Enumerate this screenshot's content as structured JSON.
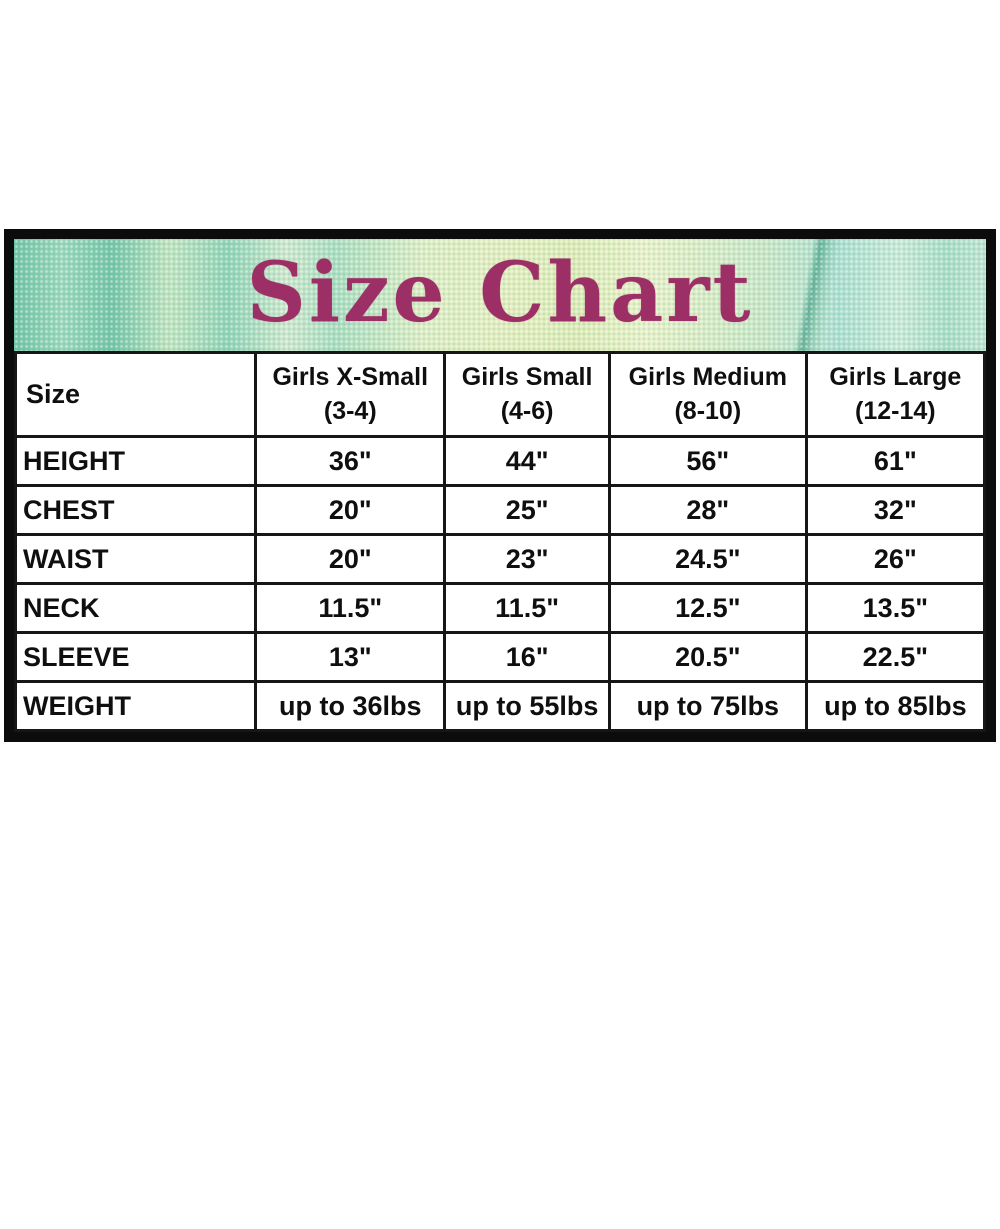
{
  "title": "Size Chart",
  "colors": {
    "title_text": "#9c2f66",
    "banner_teal": "#8fd2b5",
    "banner_yellow_green": "#e2edbe",
    "border_black": "#0c0c0c",
    "table_text": "#0f0f0f",
    "background": "#ffffff"
  },
  "table": {
    "corner_label": "Size",
    "columns": [
      {
        "name": "Girls X-Small",
        "range": "(3-4)"
      },
      {
        "name": "Girls Small",
        "range": "(4-6)"
      },
      {
        "name": "Girls Medium",
        "range": "(8-10)"
      },
      {
        "name": "Girls Large",
        "range": "(12-14)"
      }
    ],
    "rows": [
      {
        "label": "HEIGHT",
        "values": [
          "36\"",
          "44\"",
          "56\"",
          "61\""
        ]
      },
      {
        "label": "CHEST",
        "values": [
          "20\"",
          "25\"",
          "28\"",
          "32\""
        ]
      },
      {
        "label": "WAIST",
        "values": [
          "20\"",
          "23\"",
          "24.5\"",
          "26\""
        ]
      },
      {
        "label": "NECK",
        "values": [
          "11.5\"",
          "11.5\"",
          "12.5\"",
          "13.5\""
        ]
      },
      {
        "label": "SLEEVE",
        "values": [
          "13\"",
          "16\"",
          "20.5\"",
          "22.5\""
        ]
      },
      {
        "label": "WEIGHT",
        "values": [
          "up to 36lbs",
          "up to 55lbs",
          "up to 75lbs",
          "up to 85lbs"
        ]
      }
    ]
  },
  "chart_data": {
    "type": "table",
    "title": "Size Chart",
    "columns": [
      "Size",
      "Girls X-Small (3-4)",
      "Girls Small (4-6)",
      "Girls Medium (8-10)",
      "Girls Large (12-14)"
    ],
    "rows": [
      [
        "HEIGHT",
        "36\"",
        "44\"",
        "56\"",
        "61\""
      ],
      [
        "CHEST",
        "20\"",
        "25\"",
        "28\"",
        "32\""
      ],
      [
        "WAIST",
        "20\"",
        "23\"",
        "24.5\"",
        "26\""
      ],
      [
        "NECK",
        "11.5\"",
        "11.5\"",
        "12.5\"",
        "13.5\""
      ],
      [
        "SLEEVE",
        "13\"",
        "16\"",
        "20.5\"",
        "22.5\""
      ],
      [
        "WEIGHT",
        "up to 36lbs",
        "up to 55lbs",
        "up to 75lbs",
        "up to 85lbs"
      ]
    ]
  }
}
